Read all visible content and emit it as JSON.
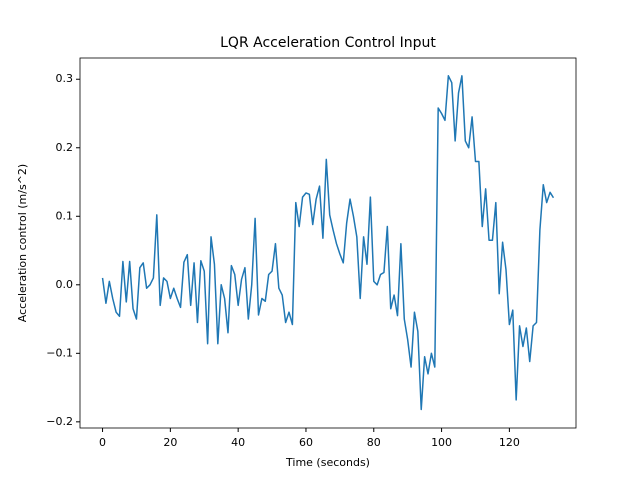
{
  "chart_data": {
    "type": "line",
    "title": "LQR Acceleration Control Input",
    "x_label": "Time (seconds)",
    "y_label": "Acceleration control (m/s^2)",
    "x": [
      0,
      1,
      2,
      3,
      4,
      5,
      6,
      7,
      8,
      9,
      10,
      11,
      12,
      13,
      14,
      15,
      16,
      17,
      18,
      19,
      20,
      21,
      22,
      23,
      24,
      25,
      26,
      27,
      28,
      29,
      30,
      31,
      32,
      33,
      34,
      35,
      36,
      37,
      38,
      39,
      40,
      41,
      42,
      43,
      44,
      45,
      46,
      47,
      48,
      49,
      50,
      51,
      52,
      53,
      54,
      55,
      56,
      57,
      58,
      59,
      60,
      61,
      62,
      63,
      64,
      65,
      66,
      67,
      68,
      69,
      70,
      71,
      72,
      73,
      74,
      75,
      76,
      77,
      78,
      79,
      80,
      81,
      82,
      83,
      84,
      85,
      86,
      87,
      88,
      89,
      90,
      91,
      92,
      93,
      94,
      95,
      96,
      97,
      98,
      99,
      100,
      101,
      102,
      103,
      104,
      105,
      106,
      107,
      108,
      109,
      110,
      111,
      112,
      113,
      114,
      115,
      116,
      117,
      118,
      119,
      120,
      121,
      122,
      123,
      124,
      125,
      126,
      127,
      128,
      129,
      130,
      131,
      132,
      133
    ],
    "series": [
      {
        "color": "#1f77b4",
        "values": [
          0.01,
          -0.027,
          0.005,
          -0.02,
          -0.04,
          -0.046,
          0.034,
          -0.025,
          0.034,
          -0.035,
          -0.05,
          0.025,
          0.032,
          -0.005,
          0.0,
          0.01,
          0.102,
          -0.03,
          0.01,
          0.005,
          -0.02,
          -0.005,
          -0.02,
          -0.033,
          0.033,
          0.044,
          -0.03,
          0.032,
          -0.055,
          0.035,
          0.02,
          -0.086,
          0.07,
          0.03,
          -0.086,
          0.0,
          -0.02,
          -0.07,
          0.028,
          0.015,
          -0.03,
          0.008,
          0.025,
          -0.05,
          0.0,
          0.097,
          -0.044,
          -0.02,
          -0.024,
          0.015,
          0.02,
          0.06,
          -0.005,
          -0.015,
          -0.055,
          -0.04,
          -0.058,
          0.12,
          0.085,
          0.128,
          0.134,
          0.132,
          0.088,
          0.125,
          0.144,
          0.068,
          0.183,
          0.102,
          0.08,
          0.06,
          0.045,
          0.032,
          0.09,
          0.125,
          0.1,
          0.07,
          -0.02,
          0.07,
          0.03,
          0.128,
          0.005,
          0.0,
          0.015,
          0.018,
          0.085,
          -0.035,
          -0.015,
          -0.045,
          0.06,
          -0.05,
          -0.08,
          -0.12,
          -0.04,
          -0.068,
          -0.182,
          -0.105,
          -0.13,
          -0.1,
          -0.12,
          0.258,
          0.25,
          0.24,
          0.305,
          0.295,
          0.21,
          0.28,
          0.305,
          0.21,
          0.2,
          0.245,
          0.18,
          0.18,
          0.085,
          0.14,
          0.065,
          0.065,
          0.12,
          -0.013,
          0.062,
          0.022,
          -0.058,
          -0.037,
          -0.168,
          -0.06,
          -0.09,
          -0.063,
          -0.112,
          -0.06,
          -0.055,
          0.08,
          0.146,
          0.12,
          0.135,
          0.127
        ]
      }
    ],
    "xlim": [
      -6.65,
      139.65
    ],
    "xticks": [
      0,
      20,
      40,
      60,
      80,
      100,
      120
    ],
    "ylim": [
      -0.209,
      0.331
    ],
    "yticks": [
      {
        "value": -0.2,
        "label": "−0.2"
      },
      {
        "value": -0.1,
        "label": "−0.1"
      },
      {
        "value": 0.0,
        "label": "0.0"
      },
      {
        "value": 0.1,
        "label": "0.1"
      },
      {
        "value": 0.2,
        "label": "0.2"
      },
      {
        "value": 0.3,
        "label": "0.3"
      }
    ]
  }
}
